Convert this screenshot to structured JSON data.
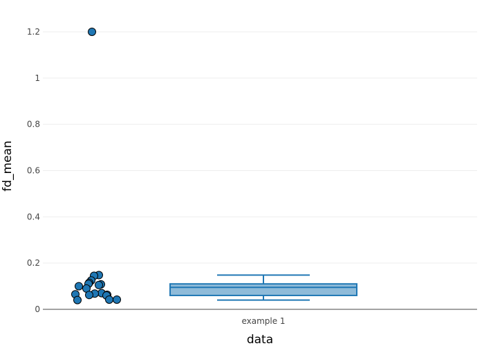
{
  "chart_data": {
    "type": "box",
    "xlabel": "data",
    "ylabel": "fd_mean",
    "categories": [
      "example 1"
    ],
    "ylim": [
      -0.02,
      1.25
    ],
    "yticks": [
      0,
      0.2,
      0.4,
      0.6,
      0.8,
      1,
      1.2
    ],
    "ytick_labels": [
      "0",
      "0.2",
      "0.4",
      "0.6",
      "0.8",
      "1",
      "1.2"
    ],
    "grid": true,
    "box": {
      "category": "example 1",
      "lower_whisker": 0.04,
      "q1": 0.06,
      "median": 0.095,
      "q3": 0.11,
      "upper_whisker": 0.148
    },
    "points": [
      1.2,
      0.148,
      0.145,
      0.125,
      0.115,
      0.11,
      0.108,
      0.105,
      0.1,
      0.09,
      0.07,
      0.068,
      0.065,
      0.063,
      0.062,
      0.06,
      0.042,
      0.042,
      0.04
    ],
    "colors": {
      "accent": "#1f77b4",
      "box_fill": "#8fbbd9",
      "grid": "#eeeeee",
      "axis": "#444444"
    }
  }
}
